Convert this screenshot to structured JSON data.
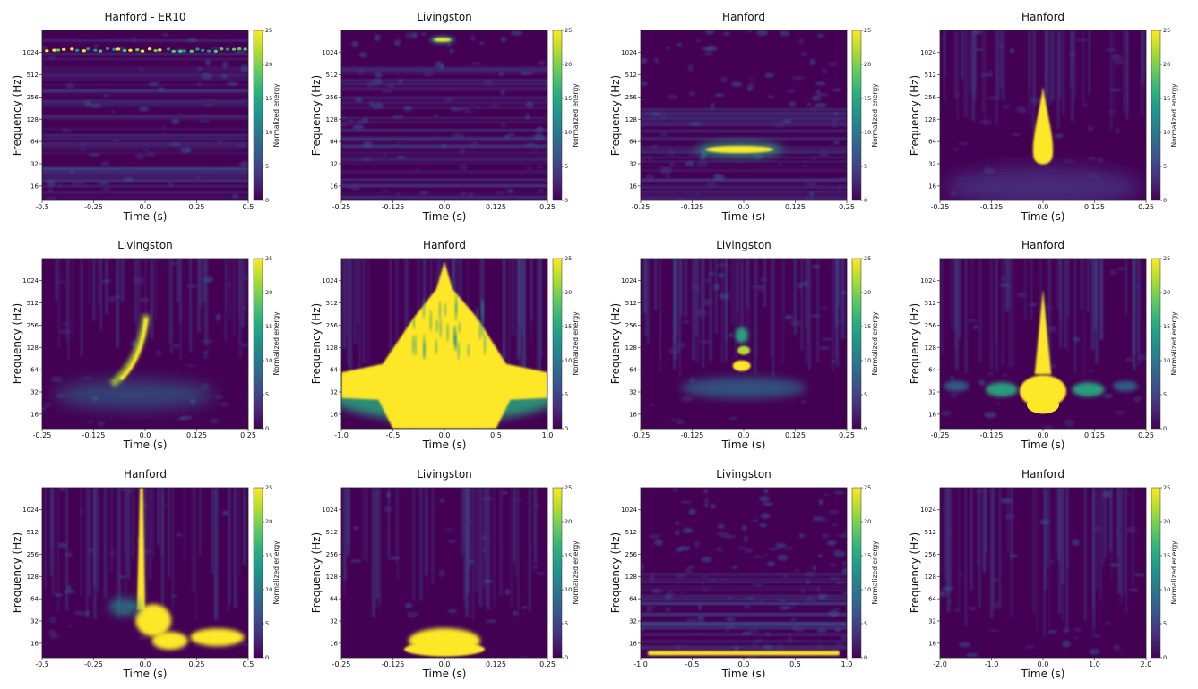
{
  "colors": {
    "background": "#440154",
    "colormap": [
      "#440154",
      "#472d7b",
      "#3b528b",
      "#2c728e",
      "#21918c",
      "#28ae80",
      "#5ec962",
      "#addc30",
      "#fde725"
    ]
  },
  "chart_data": [
    {
      "type": "heatmap",
      "title": "Hanford - ER10",
      "xlabel": "Time (s)",
      "ylabel": "Frequency (Hz)",
      "xticks": [
        "-0.5",
        "-0.25",
        "0.0",
        "0.25",
        "0.5"
      ],
      "yticks": [
        "1024",
        "512",
        "256",
        "128",
        "64",
        "32",
        "16"
      ],
      "colorbar": {
        "label": "Normalized energy",
        "ticks": [
          "25",
          "20",
          "15",
          "10",
          "5",
          "0"
        ],
        "range": [
          0,
          25
        ]
      },
      "pattern": "blips",
      "features": [
        {
          "t": -0.2,
          "f": 1200,
          "value": 25,
          "description": "row of short bright blips near 1200 Hz spanning full time range"
        }
      ]
    },
    {
      "type": "heatmap",
      "title": "Livingston",
      "xlabel": "Time (s)",
      "ylabel": "Frequency (Hz)",
      "xticks": [
        "-0.25",
        "-0.125",
        "0.0",
        "0.125",
        "0.25"
      ],
      "yticks": [
        "1024",
        "512",
        "256",
        "128",
        "64",
        "32",
        "16"
      ],
      "colorbar": {
        "label": "Normalized energy",
        "ticks": [
          "25",
          "20",
          "15",
          "10",
          "5",
          "0"
        ],
        "range": [
          0,
          25
        ]
      },
      "pattern": "highblob",
      "features": [
        {
          "t": -0.01,
          "f": 1500,
          "value": 25,
          "description": "short narrow blob near top"
        }
      ]
    },
    {
      "type": "heatmap",
      "title": "Hanford",
      "xlabel": "Time (s)",
      "ylabel": "Frequency (Hz)",
      "xticks": [
        "-0.25",
        "-0.125",
        "0.0",
        "0.125",
        "0.25"
      ],
      "yticks": [
        "1024",
        "512",
        "256",
        "128",
        "64",
        "32",
        "16"
      ],
      "colorbar": {
        "label": "Normalized energy",
        "ticks": [
          "25",
          "20",
          "15",
          "10",
          "5",
          "0"
        ],
        "range": [
          0,
          25
        ]
      },
      "pattern": "hband",
      "features": [
        {
          "t": 0.0,
          "f": 45,
          "value": 25,
          "description": "horizontal elongated blob around 45 Hz"
        }
      ]
    },
    {
      "type": "heatmap",
      "title": "Hanford",
      "xlabel": "Time (s)",
      "ylabel": "Frequency (Hz)",
      "xticks": [
        "-0.25",
        "-0.125",
        "0.0",
        "0.125",
        "0.25"
      ],
      "yticks": [
        "1024",
        "512",
        "256",
        "128",
        "64",
        "32",
        "16"
      ],
      "colorbar": {
        "label": "Normalized energy",
        "ticks": [
          "25",
          "20",
          "15",
          "10",
          "5",
          "0"
        ],
        "range": [
          0,
          25
        ]
      },
      "pattern": "teardrop",
      "features": [
        {
          "t": 0.0,
          "f": 60,
          "value": 25,
          "description": "vertical teardrop from ~40 Hz up to ~300 Hz"
        }
      ]
    },
    {
      "type": "heatmap",
      "title": "Livingston",
      "xlabel": "Time (s)",
      "ylabel": "Frequency (Hz)",
      "xticks": [
        "-0.25",
        "-0.125",
        "0.0",
        "0.125",
        "0.25"
      ],
      "yticks": [
        "1024",
        "512",
        "256",
        "128",
        "64",
        "32",
        "16"
      ],
      "colorbar": {
        "label": "Normalized energy",
        "ticks": [
          "25",
          "20",
          "15",
          "10",
          "5",
          "0"
        ],
        "range": [
          0,
          25
        ]
      },
      "pattern": "chirp",
      "features": [
        {
          "t": -0.01,
          "f": 200,
          "value": 25,
          "description": "rising chirp from ~40 Hz to ~300 Hz ending at t=0"
        }
      ]
    },
    {
      "type": "heatmap",
      "title": "Hanford",
      "xlabel": "Time (s)",
      "ylabel": "Frequency (Hz)",
      "xticks": [
        "-1.0",
        "-0.5",
        "0.0",
        "0.5",
        "1.0"
      ],
      "yticks": [
        "1024",
        "512",
        "256",
        "128",
        "64",
        "32",
        "16"
      ],
      "colorbar": {
        "label": "Normalized energy",
        "ticks": [
          "25",
          "20",
          "15",
          "10",
          "5",
          "0"
        ],
        "range": [
          0,
          25
        ]
      },
      "pattern": "broadband",
      "features": [
        {
          "t": 0.0,
          "f": 64,
          "value": 25,
          "description": "large saturated broadband triangle, peak reaching ~1024 Hz"
        }
      ]
    },
    {
      "type": "heatmap",
      "title": "Livingston",
      "xlabel": "Time (s)",
      "ylabel": "Frequency (Hz)",
      "xticks": [
        "-0.25",
        "-0.125",
        "0.0",
        "0.125",
        "0.25"
      ],
      "yticks": [
        "1024",
        "512",
        "256",
        "128",
        "64",
        "32",
        "16"
      ],
      "colorbar": {
        "label": "Normalized energy",
        "ticks": [
          "25",
          "20",
          "15",
          "10",
          "5",
          "0"
        ],
        "range": [
          0,
          25
        ]
      },
      "pattern": "stacked",
      "features": [
        {
          "t": 0.0,
          "f": 80,
          "value": 22,
          "description": "stacked blobs near 80 Hz and 128 Hz"
        }
      ]
    },
    {
      "type": "heatmap",
      "title": "Hanford",
      "xlabel": "Time (s)",
      "ylabel": "Frequency (Hz)",
      "xticks": [
        "-0.25",
        "-0.125",
        "0.0",
        "0.125",
        "0.25"
      ],
      "yticks": [
        "1024",
        "512",
        "256",
        "128",
        "64",
        "32",
        "16"
      ],
      "colorbar": {
        "label": "Normalized energy",
        "ticks": [
          "25",
          "20",
          "15",
          "10",
          "5",
          "0"
        ],
        "range": [
          0,
          25
        ]
      },
      "pattern": "blipwings",
      "features": [
        {
          "t": 0.0,
          "f": 40,
          "value": 25,
          "description": "bright vertical spike with lateral wings near 40 Hz"
        }
      ]
    },
    {
      "type": "heatmap",
      "title": "Hanford",
      "xlabel": "Time (s)",
      "ylabel": "Frequency (Hz)",
      "xticks": [
        "-0.5",
        "-0.25",
        "0.0",
        "0.25",
        "0.5"
      ],
      "yticks": [
        "1024",
        "512",
        "256",
        "128",
        "64",
        "32",
        "16"
      ],
      "colorbar": {
        "label": "Normalized energy",
        "ticks": [
          "25",
          "20",
          "15",
          "10",
          "5",
          "0"
        ],
        "range": [
          0,
          25
        ]
      },
      "pattern": "spikeplus",
      "features": [
        {
          "t": 0.0,
          "f": 100,
          "value": 25,
          "description": "tall vertical spike at t=0 plus low-frequency blobs to the right"
        }
      ]
    },
    {
      "type": "heatmap",
      "title": "Livingston",
      "xlabel": "Time (s)",
      "ylabel": "Frequency (Hz)",
      "xticks": [
        "-0.25",
        "-0.125",
        "0.0",
        "0.125",
        "0.25"
      ],
      "yticks": [
        "1024",
        "512",
        "256",
        "128",
        "64",
        "32",
        "16"
      ],
      "colorbar": {
        "label": "Normalized energy",
        "ticks": [
          "25",
          "20",
          "15",
          "10",
          "5",
          "0"
        ],
        "range": [
          0,
          25
        ]
      },
      "pattern": "lowblob",
      "features": [
        {
          "t": 0.0,
          "f": 16,
          "value": 25,
          "description": "low-frequency blob near 16 Hz"
        }
      ]
    },
    {
      "type": "heatmap",
      "title": "Livingston",
      "xlabel": "Time (s)",
      "ylabel": "Frequency (Hz)",
      "xticks": [
        "-1.0",
        "-0.5",
        "0.0",
        "0.5",
        "1.0"
      ],
      "yticks": [
        "1024",
        "512",
        "256",
        "128",
        "64",
        "32",
        "16"
      ],
      "colorbar": {
        "label": "Normalized energy",
        "ticks": [
          "25",
          "20",
          "15",
          "10",
          "5",
          "0"
        ],
        "range": [
          0,
          25
        ]
      },
      "pattern": "lowline",
      "features": [
        {
          "t": 0.0,
          "f": 10,
          "value": 25,
          "description": "thin bright horizontal line near 10 Hz across full time range"
        }
      ]
    },
    {
      "type": "heatmap",
      "title": "Hanford",
      "xlabel": "Time (s)",
      "ylabel": "Frequency (Hz)",
      "xticks": [
        "-2.0",
        "-1.0",
        "0.0",
        "1.0",
        "2.0"
      ],
      "yticks": [
        "1024",
        "512",
        "256",
        "128",
        "64",
        "32",
        "16"
      ],
      "colorbar": {
        "label": "Normalized energy",
        "ticks": [
          "25",
          "20",
          "15",
          "10",
          "5",
          "0"
        ],
        "range": [
          0,
          25
        ]
      },
      "pattern": "noise",
      "features": []
    }
  ]
}
